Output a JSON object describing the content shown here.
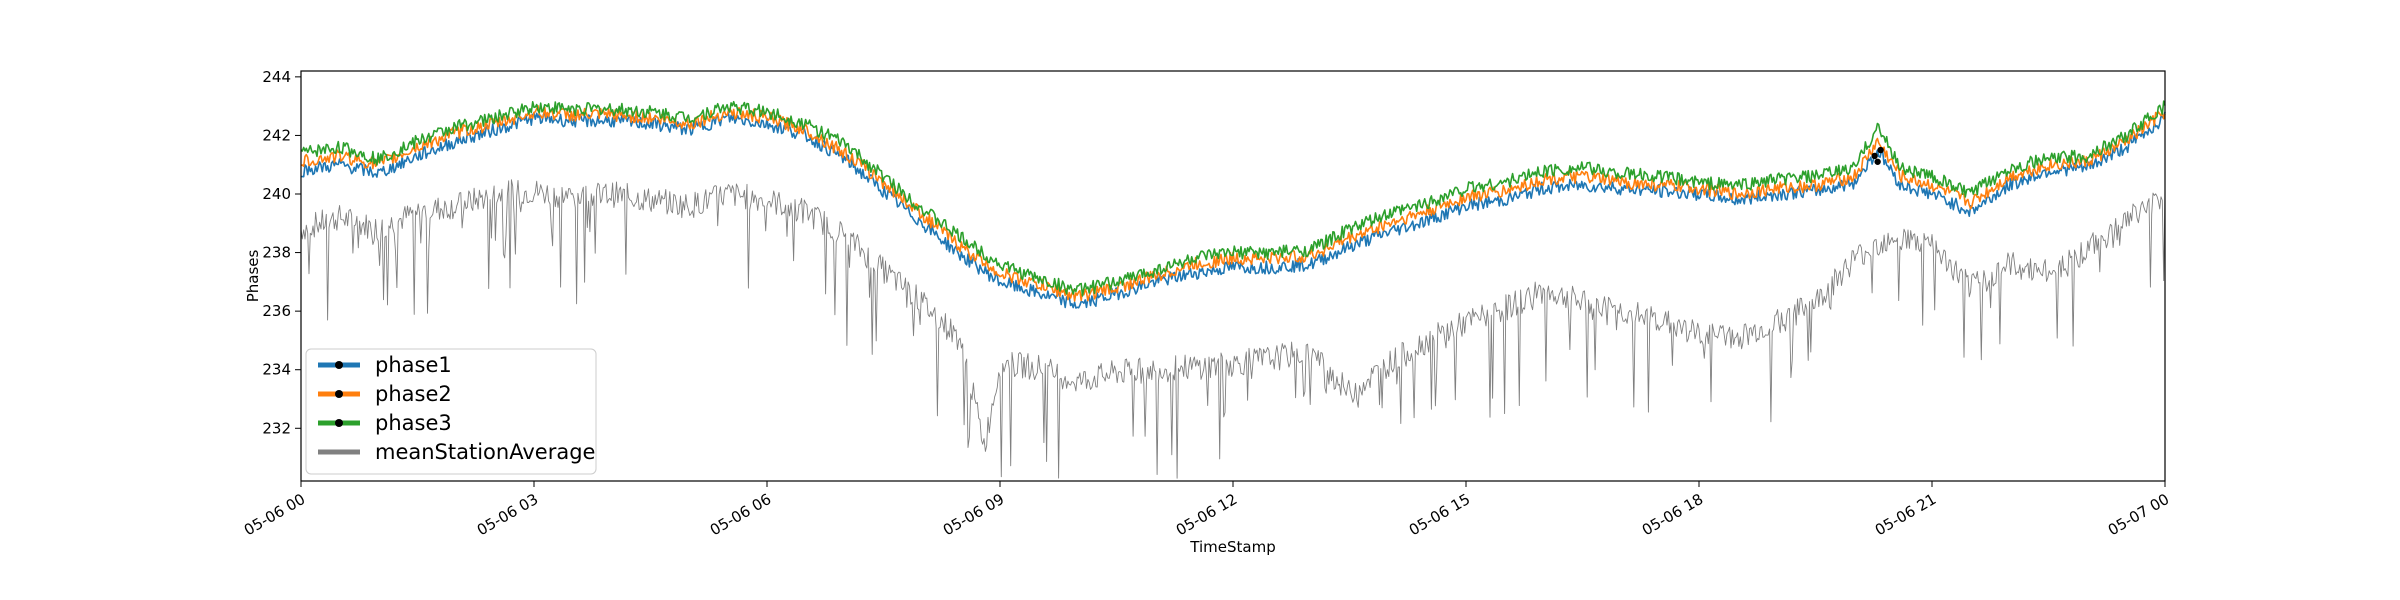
{
  "chart_data": {
    "type": "line",
    "title": "",
    "xlabel": "TimeStamp",
    "ylabel": "Phases",
    "x_range": [
      "05-06 00",
      "05-07 00"
    ],
    "ylim": [
      230.2,
      244.2
    ],
    "x_ticks": [
      {
        "hour": 0,
        "label": "05-06 00"
      },
      {
        "hour": 3,
        "label": "05-06 03"
      },
      {
        "hour": 6,
        "label": "05-06 06"
      },
      {
        "hour": 9,
        "label": "05-06 09"
      },
      {
        "hour": 12,
        "label": "05-06 12"
      },
      {
        "hour": 15,
        "label": "05-06 15"
      },
      {
        "hour": 18,
        "label": "05-06 18"
      },
      {
        "hour": 21,
        "label": "05-06 21"
      },
      {
        "hour": 24,
        "label": "05-07 00"
      }
    ],
    "y_ticks": [
      232,
      234,
      236,
      238,
      240,
      242,
      244
    ],
    "grid": false,
    "legend_position": "lower-left",
    "series": [
      {
        "name": "phase1",
        "color": "#1f77b4",
        "x_hours": [
          0,
          0.5,
          1,
          1.5,
          2,
          2.5,
          3,
          3.5,
          4,
          4.5,
          5,
          5.5,
          6,
          6.5,
          7,
          7.5,
          8,
          8.5,
          9,
          9.5,
          10,
          10.5,
          11,
          11.5,
          12,
          12.5,
          13,
          13.5,
          14,
          14.5,
          15,
          15.5,
          16,
          16.5,
          17,
          17.5,
          18,
          18.5,
          19,
          19.5,
          20,
          20.3,
          20.6,
          21,
          21.5,
          22,
          22.5,
          23,
          23.5,
          24
        ],
        "values": [
          240.8,
          241.0,
          240.7,
          241.3,
          241.8,
          242.2,
          242.6,
          242.5,
          242.5,
          242.4,
          242.2,
          242.6,
          242.4,
          242.0,
          241.2,
          240.1,
          239.0,
          237.9,
          237.0,
          236.6,
          236.2,
          236.6,
          237.0,
          237.3,
          237.5,
          237.5,
          237.6,
          238.2,
          238.7,
          239.1,
          239.6,
          239.8,
          240.2,
          240.3,
          240.2,
          240.1,
          240.0,
          239.8,
          240.0,
          240.1,
          240.4,
          241.5,
          240.3,
          240.0,
          239.4,
          240.3,
          240.8,
          240.9,
          241.6,
          242.6
        ]
      },
      {
        "name": "phase2",
        "color": "#ff7f0e",
        "x_hours": [
          0,
          0.5,
          1,
          1.5,
          2,
          2.5,
          3,
          3.5,
          4,
          4.5,
          5,
          5.5,
          6,
          6.5,
          7,
          7.5,
          8,
          8.5,
          9,
          9.5,
          10,
          10.5,
          11,
          11.5,
          12,
          12.5,
          13,
          13.5,
          14,
          14.5,
          15,
          15.5,
          16,
          16.5,
          17,
          17.5,
          18,
          18.5,
          19,
          19.5,
          20,
          20.3,
          20.6,
          21,
          21.5,
          22,
          22.5,
          23,
          23.5,
          24
        ],
        "values": [
          241.1,
          241.3,
          241.0,
          241.6,
          242.1,
          242.4,
          242.8,
          242.7,
          242.7,
          242.6,
          242.4,
          242.8,
          242.6,
          242.2,
          241.4,
          240.4,
          239.3,
          238.2,
          237.3,
          236.9,
          236.5,
          236.8,
          237.2,
          237.6,
          237.8,
          237.8,
          237.9,
          238.5,
          239.0,
          239.4,
          239.9,
          240.1,
          240.5,
          240.6,
          240.4,
          240.3,
          240.2,
          240.0,
          240.2,
          240.3,
          240.6,
          241.8,
          240.6,
          240.3,
          239.7,
          240.6,
          241.0,
          241.1,
          241.8,
          242.8
        ]
      },
      {
        "name": "phase3",
        "color": "#2ca02c",
        "x_hours": [
          0,
          0.5,
          1,
          1.5,
          2,
          2.5,
          3,
          3.5,
          4,
          4.5,
          5,
          5.5,
          6,
          6.5,
          7,
          7.5,
          8,
          8.5,
          9,
          9.5,
          10,
          10.5,
          11,
          11.5,
          12,
          12.5,
          13,
          13.5,
          14,
          14.5,
          15,
          15.5,
          16,
          16.5,
          17,
          17.5,
          18,
          18.5,
          19,
          19.5,
          20,
          20.3,
          20.6,
          21,
          21.5,
          22,
          22.5,
          23,
          23.5,
          24
        ],
        "values": [
          241.4,
          241.6,
          241.2,
          241.8,
          242.3,
          242.6,
          243.0,
          242.9,
          242.9,
          242.8,
          242.6,
          243.0,
          242.8,
          242.4,
          241.7,
          240.6,
          239.5,
          238.5,
          237.6,
          237.1,
          236.7,
          237.0,
          237.4,
          237.8,
          238.0,
          238.0,
          238.1,
          238.8,
          239.3,
          239.7,
          240.2,
          240.4,
          240.8,
          240.9,
          240.7,
          240.6,
          240.4,
          240.3,
          240.5,
          240.6,
          240.9,
          242.3,
          240.9,
          240.6,
          240.0,
          240.9,
          241.2,
          241.3,
          242.0,
          243.0
        ]
      },
      {
        "name": "meanStationAverage",
        "color": "#808080",
        "x_hours": [
          0,
          0.5,
          1,
          1.5,
          2,
          2.5,
          3,
          3.5,
          4,
          4.5,
          5,
          5.5,
          6,
          6.5,
          7,
          7.5,
          8,
          8.5,
          8.8,
          9,
          9.5,
          10,
          10.5,
          11,
          11.5,
          12,
          12.5,
          13,
          13.5,
          14,
          14.5,
          15,
          15.5,
          16,
          16.5,
          17,
          17.5,
          18,
          18.5,
          19,
          19.5,
          20,
          20.5,
          21,
          21.5,
          22,
          22.5,
          23,
          23.5,
          24
        ],
        "values": [
          238.8,
          239.2,
          238.8,
          239.4,
          239.6,
          240.0,
          240.1,
          239.9,
          240.0,
          239.8,
          239.6,
          240.0,
          239.8,
          239.4,
          238.6,
          237.4,
          236.3,
          235.0,
          231.4,
          234.2,
          234.1,
          233.6,
          233.9,
          234.0,
          234.1,
          234.2,
          234.4,
          234.6,
          233.2,
          234.2,
          235.0,
          235.6,
          236.1,
          236.7,
          236.3,
          236.0,
          235.7,
          235.2,
          235.1,
          235.6,
          236.3,
          237.8,
          238.6,
          238.2,
          236.8,
          237.6,
          237.3,
          238.1,
          239.1,
          240.0
        ]
      }
    ]
  }
}
